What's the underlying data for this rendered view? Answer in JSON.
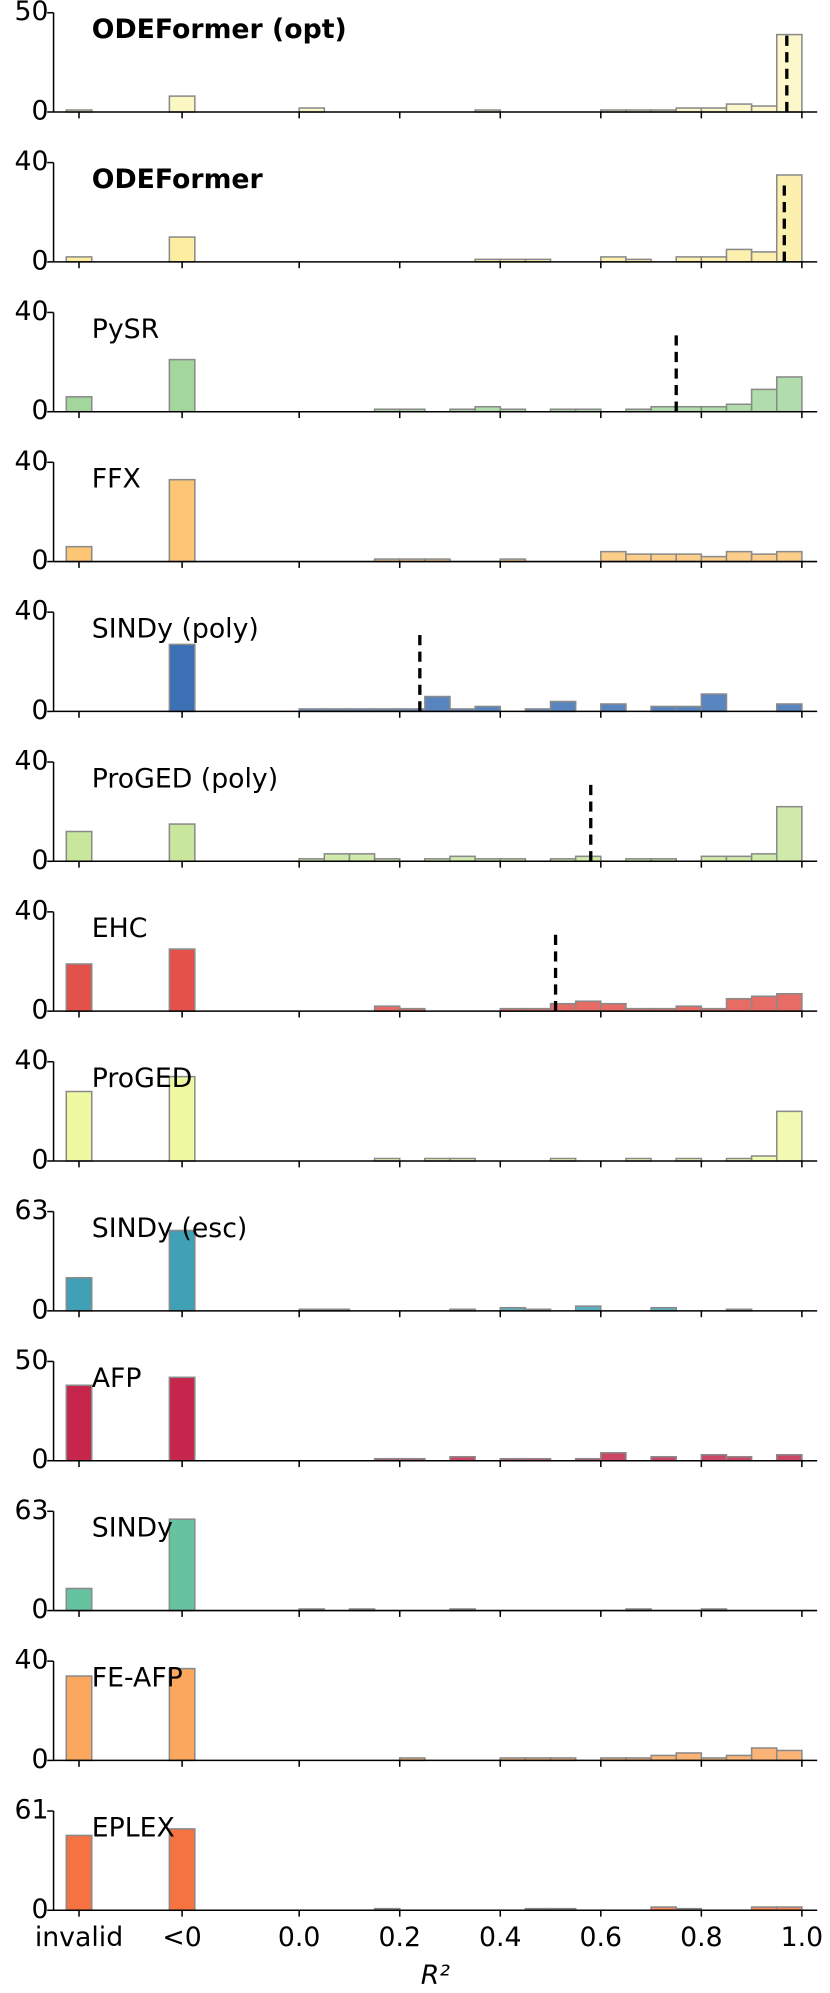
{
  "chart_data": [
    {
      "type": "histogram",
      "title": "ODEFormer (opt)",
      "bold": true,
      "color": "#fbf7c2",
      "categories": [
        "invalid",
        "<0"
      ],
      "values": [
        1,
        8
      ],
      "bins": [
        0,
        0.05,
        0.1,
        0.15,
        0.2,
        0.25,
        0.3,
        0.35,
        0.4,
        0.45,
        0.5,
        0.55,
        0.6,
        0.65,
        0.7,
        0.75,
        0.8,
        0.85,
        0.9,
        0.95,
        1
      ],
      "counts": [
        2,
        0,
        0,
        0,
        0,
        0,
        0,
        1,
        0,
        0,
        0,
        0,
        1,
        1,
        1,
        2,
        2,
        4,
        3,
        39
      ],
      "median": 0.97,
      "ylim": [
        0,
        50
      ],
      "yticks": [
        0,
        50
      ]
    },
    {
      "type": "histogram",
      "title": "ODEFormer",
      "bold": true,
      "color": "#fdeda0",
      "categories": [
        "invalid",
        "<0"
      ],
      "values": [
        2,
        10
      ],
      "bins": [
        0,
        0.05,
        0.1,
        0.15,
        0.2,
        0.25,
        0.3,
        0.35,
        0.4,
        0.45,
        0.5,
        0.55,
        0.6,
        0.65,
        0.7,
        0.75,
        0.8,
        0.85,
        0.9,
        0.95,
        1
      ],
      "counts": [
        0,
        0,
        0,
        0,
        0,
        0,
        0,
        1,
        1,
        1,
        0,
        0,
        2,
        1,
        0,
        2,
        2,
        5,
        4,
        35
      ],
      "median": 0.965,
      "ylim": [
        0,
        40
      ],
      "yticks": [
        0,
        40
      ]
    },
    {
      "type": "histogram",
      "title": "PySR",
      "color": "#a3d69c",
      "categories": [
        "invalid",
        "<0"
      ],
      "values": [
        6,
        21
      ],
      "bins": [
        0,
        0.05,
        0.1,
        0.15,
        0.2,
        0.25,
        0.3,
        0.35,
        0.4,
        0.45,
        0.5,
        0.55,
        0.6,
        0.65,
        0.7,
        0.75,
        0.8,
        0.85,
        0.9,
        0.95,
        1
      ],
      "counts": [
        0,
        0,
        0,
        1,
        1,
        0,
        1,
        2,
        1,
        0,
        1,
        1,
        0,
        1,
        2,
        2,
        2,
        3,
        9,
        14
      ],
      "median": 0.75,
      "ylim": [
        0,
        40
      ],
      "yticks": [
        0,
        40
      ]
    },
    {
      "type": "histogram",
      "title": "FFX",
      "color": "#fdc675",
      "categories": [
        "invalid",
        "<0"
      ],
      "values": [
        6,
        33
      ],
      "bins": [
        0,
        0.05,
        0.1,
        0.15,
        0.2,
        0.25,
        0.3,
        0.35,
        0.4,
        0.45,
        0.5,
        0.55,
        0.6,
        0.65,
        0.7,
        0.75,
        0.8,
        0.85,
        0.9,
        0.95,
        1
      ],
      "counts": [
        0,
        0,
        0,
        1,
        1,
        1,
        0,
        0,
        1,
        0,
        0,
        0,
        4,
        3,
        3,
        3,
        2,
        4,
        3,
        4
      ],
      "ylim": [
        0,
        40
      ],
      "yticks": [
        0,
        40
      ]
    },
    {
      "type": "histogram",
      "title": "SINDy (poly)",
      "color": "#3b70b4",
      "categories": [
        "invalid",
        "<0"
      ],
      "values": [
        0,
        27
      ],
      "bins": [
        0,
        0.05,
        0.1,
        0.15,
        0.2,
        0.25,
        0.3,
        0.35,
        0.4,
        0.45,
        0.5,
        0.55,
        0.6,
        0.65,
        0.7,
        0.75,
        0.8,
        0.85,
        0.9,
        0.95,
        1
      ],
      "counts": [
        1,
        1,
        1,
        1,
        1,
        6,
        1,
        2,
        0,
        1,
        4,
        0,
        3,
        0,
        2,
        2,
        7,
        0,
        0,
        3
      ],
      "median": 0.24,
      "ylim": [
        0,
        40
      ],
      "yticks": [
        0,
        40
      ]
    },
    {
      "type": "histogram",
      "title": "ProGED (poly)",
      "color": "#c8e69c",
      "categories": [
        "invalid",
        "<0"
      ],
      "values": [
        12,
        15
      ],
      "bins": [
        0,
        0.05,
        0.1,
        0.15,
        0.2,
        0.25,
        0.3,
        0.35,
        0.4,
        0.45,
        0.5,
        0.55,
        0.6,
        0.65,
        0.7,
        0.75,
        0.8,
        0.85,
        0.9,
        0.95,
        1
      ],
      "counts": [
        1,
        3,
        3,
        1,
        0,
        1,
        2,
        1,
        1,
        0,
        1,
        2,
        0,
        1,
        1,
        0,
        2,
        2,
        3,
        22
      ],
      "median": 0.58,
      "ylim": [
        0,
        40
      ],
      "yticks": [
        0,
        40
      ]
    },
    {
      "type": "histogram",
      "title": "EHC",
      "color": "#e3524a",
      "categories": [
        "invalid",
        "<0"
      ],
      "values": [
        19,
        25
      ],
      "bins": [
        0,
        0.05,
        0.1,
        0.15,
        0.2,
        0.25,
        0.3,
        0.35,
        0.4,
        0.45,
        0.5,
        0.55,
        0.6,
        0.65,
        0.7,
        0.75,
        0.8,
        0.85,
        0.9,
        0.95,
        1
      ],
      "counts": [
        0,
        0,
        0,
        2,
        1,
        0,
        0,
        0,
        1,
        1,
        3,
        4,
        3,
        1,
        1,
        2,
        1,
        5,
        6,
        7
      ],
      "median": 0.51,
      "ylim": [
        0,
        40
      ],
      "yticks": [
        0,
        40
      ]
    },
    {
      "type": "histogram",
      "title": "ProGED",
      "color": "#eff9a2",
      "categories": [
        "invalid",
        "<0"
      ],
      "values": [
        28,
        34
      ],
      "bins": [
        0,
        0.05,
        0.1,
        0.15,
        0.2,
        0.25,
        0.3,
        0.35,
        0.4,
        0.45,
        0.5,
        0.55,
        0.6,
        0.65,
        0.7,
        0.75,
        0.8,
        0.85,
        0.9,
        0.95,
        1
      ],
      "counts": [
        0,
        0,
        0,
        1,
        0,
        1,
        1,
        0,
        0,
        0,
        1,
        0,
        0,
        1,
        0,
        1,
        0,
        1,
        2,
        20
      ],
      "ylim": [
        0,
        40
      ],
      "yticks": [
        0,
        40
      ]
    },
    {
      "type": "histogram",
      "title": "SINDy (esc)",
      "color": "#40a0b6",
      "categories": [
        "invalid",
        "<0"
      ],
      "values": [
        21,
        51
      ],
      "bins": [
        0,
        0.05,
        0.1,
        0.15,
        0.2,
        0.25,
        0.3,
        0.35,
        0.4,
        0.45,
        0.5,
        0.55,
        0.6,
        0.65,
        0.7,
        0.75,
        0.8,
        0.85,
        0.9,
        0.95,
        1
      ],
      "counts": [
        1,
        1,
        0,
        0,
        0,
        0,
        1,
        0,
        2,
        1,
        0,
        3,
        0,
        0,
        2,
        0,
        0,
        1,
        0,
        0
      ],
      "ylim": [
        0,
        63
      ],
      "yticks": [
        0,
        63
      ]
    },
    {
      "type": "histogram",
      "title": "AFP",
      "color": "#c6264b",
      "categories": [
        "invalid",
        "<0"
      ],
      "values": [
        38,
        42
      ],
      "bins": [
        0,
        0.05,
        0.1,
        0.15,
        0.2,
        0.25,
        0.3,
        0.35,
        0.4,
        0.45,
        0.5,
        0.55,
        0.6,
        0.65,
        0.7,
        0.75,
        0.8,
        0.85,
        0.9,
        0.95,
        1
      ],
      "counts": [
        0,
        0,
        0,
        1,
        1,
        0,
        2,
        0,
        1,
        1,
        0,
        1,
        4,
        0,
        2,
        0,
        3,
        2,
        0,
        3
      ],
      "ylim": [
        0,
        50
      ],
      "yticks": [
        0,
        50
      ]
    },
    {
      "type": "histogram",
      "title": "SINDy",
      "color": "#66c3a0",
      "categories": [
        "invalid",
        "<0"
      ],
      "values": [
        14,
        58
      ],
      "bins": [
        0,
        0.05,
        0.1,
        0.15,
        0.2,
        0.25,
        0.3,
        0.35,
        0.4,
        0.45,
        0.5,
        0.55,
        0.6,
        0.65,
        0.7,
        0.75,
        0.8,
        0.85,
        0.9,
        0.95,
        1
      ],
      "counts": [
        1,
        0,
        1,
        0,
        0,
        0,
        1,
        0,
        0,
        0,
        0,
        0,
        0,
        1,
        0,
        0,
        1,
        0,
        0,
        0
      ],
      "ylim": [
        0,
        63
      ],
      "yticks": [
        0,
        63
      ]
    },
    {
      "type": "histogram",
      "title": "FE-AFP",
      "color": "#fca75e",
      "categories": [
        "invalid",
        "<0"
      ],
      "values": [
        34,
        37
      ],
      "bins": [
        0,
        0.05,
        0.1,
        0.15,
        0.2,
        0.25,
        0.3,
        0.35,
        0.4,
        0.45,
        0.5,
        0.55,
        0.6,
        0.65,
        0.7,
        0.75,
        0.8,
        0.85,
        0.9,
        0.95,
        1
      ],
      "counts": [
        0,
        0,
        0,
        0,
        1,
        0,
        0,
        0,
        1,
        1,
        1,
        0,
        1,
        1,
        2,
        3,
        1,
        2,
        5,
        4
      ],
      "ylim": [
        0,
        40
      ],
      "yticks": [
        0,
        40
      ]
    },
    {
      "type": "histogram",
      "title": "EPLEX",
      "color": "#f47341",
      "categories": [
        "invalid",
        "<0"
      ],
      "values": [
        46,
        50
      ],
      "bins": [
        0,
        0.05,
        0.1,
        0.15,
        0.2,
        0.25,
        0.3,
        0.35,
        0.4,
        0.45,
        0.5,
        0.55,
        0.6,
        0.65,
        0.7,
        0.75,
        0.8,
        0.85,
        0.9,
        0.95,
        1
      ],
      "counts": [
        0,
        0,
        0,
        1,
        0,
        0,
        0,
        0,
        0,
        1,
        1,
        0,
        0,
        0,
        2,
        1,
        0,
        0,
        2,
        2
      ],
      "ylim": [
        0,
        61
      ],
      "yticks": [
        0,
        61
      ],
      "xticks": [
        {
          "value": 0,
          "label": "0.0"
        },
        {
          "value": 0.2,
          "label": "0.2"
        },
        {
          "value": 0.4,
          "label": "0.4"
        },
        {
          "value": 0.6,
          "label": "0.6"
        },
        {
          "value": 0.8,
          "label": "0.8"
        },
        {
          "value": 1,
          "label": "1.0"
        }
      ],
      "xlabel": "R²"
    }
  ]
}
